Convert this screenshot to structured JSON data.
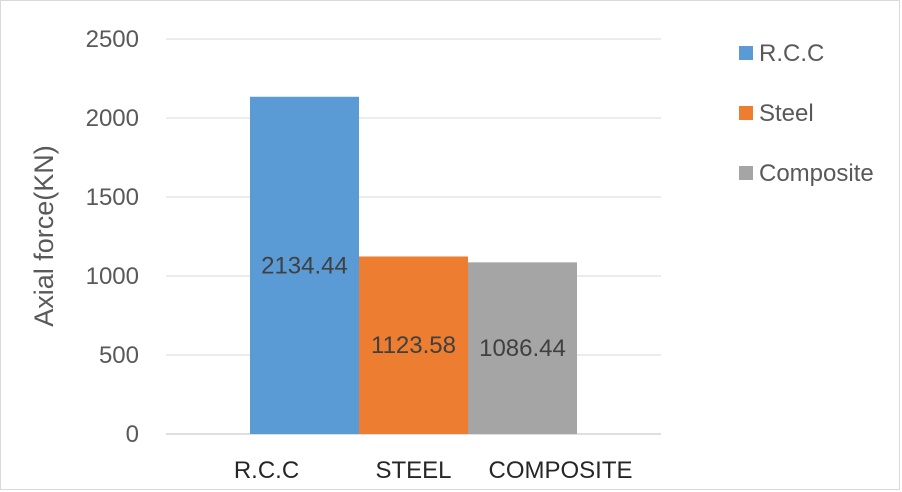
{
  "chart_data": {
    "type": "bar",
    "categories": [
      "R.C.C",
      "STEEL",
      "COMPOSITE"
    ],
    "series": [
      {
        "name": "R.C.C",
        "color": "#5b9bd5",
        "values": [
          2134.44,
          null,
          null
        ],
        "labels": [
          "2134.44",
          "",
          ""
        ]
      },
      {
        "name": "Steel",
        "color": "#ed7d31",
        "values": [
          null,
          1123.58,
          null
        ],
        "labels": [
          "",
          "1123.58",
          ""
        ]
      },
      {
        "name": "Composite",
        "color": "#a5a5a5",
        "values": [
          null,
          null,
          1086.44
        ],
        "labels": [
          "",
          "",
          "1086.44"
        ]
      }
    ],
    "ylabel": "Axial force(KN)",
    "ylim": [
      0,
      2500
    ],
    "yticks": [
      "0",
      "500",
      "1000",
      "1500",
      "2000",
      "2500"
    ],
    "grid": true,
    "legend": "right"
  }
}
